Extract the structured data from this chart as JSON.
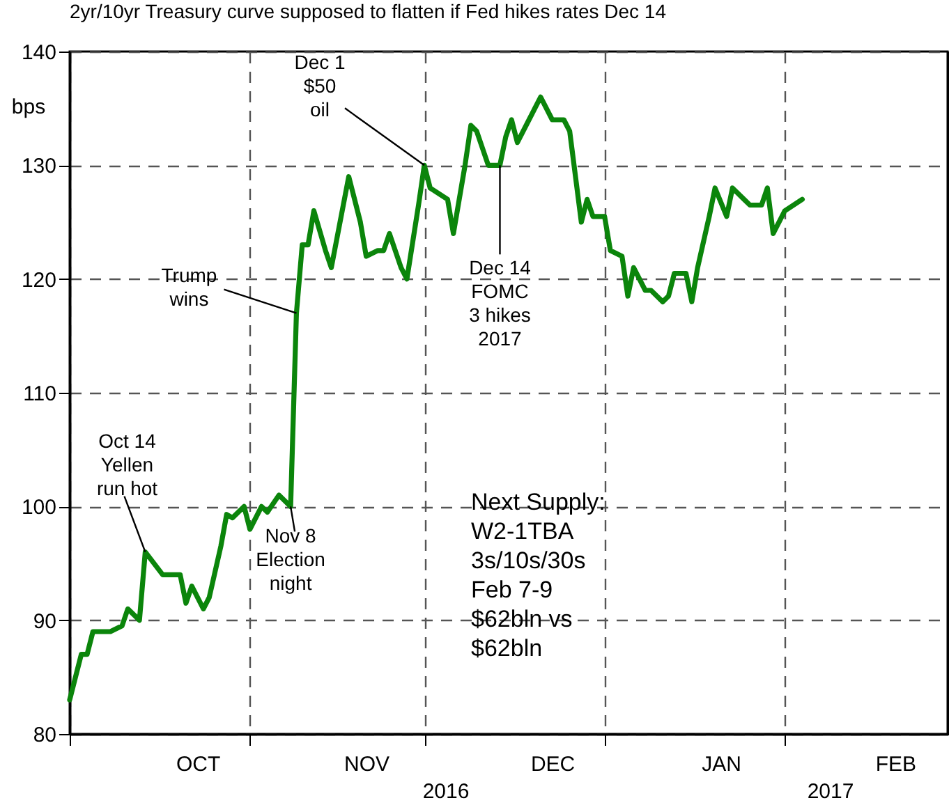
{
  "chart_data": {
    "type": "line",
    "title": "2yr/10yr Treasury curve supposed to flatten if Fed hikes rates Dec 14",
    "ylabel": "bps",
    "x": [
      "2016-10-01",
      "2016-10-03",
      "2016-10-04",
      "2016-10-05",
      "2016-10-08",
      "2016-10-10",
      "2016-10-11",
      "2016-10-13",
      "2016-10-14",
      "2016-10-17",
      "2016-10-20",
      "2016-10-21",
      "2016-10-22",
      "2016-10-24",
      "2016-10-25",
      "2016-10-27",
      "2016-10-28",
      "2016-10-29",
      "2016-10-31",
      "2016-11-01",
      "2016-11-03",
      "2016-11-04",
      "2016-11-06",
      "2016-11-08",
      "2016-11-09",
      "2016-11-10",
      "2016-11-11",
      "2016-11-12",
      "2016-11-14",
      "2016-11-15",
      "2016-11-18",
      "2016-11-20",
      "2016-11-21",
      "2016-11-23",
      "2016-11-24",
      "2016-11-25",
      "2016-11-27",
      "2016-11-28",
      "2016-11-30",
      "2016-12-01",
      "2016-12-02",
      "2016-12-05",
      "2016-12-06",
      "2016-12-08",
      "2016-12-09",
      "2016-12-10",
      "2016-12-12",
      "2016-12-14",
      "2016-12-15",
      "2016-12-16",
      "2016-12-17",
      "2016-12-19",
      "2016-12-21",
      "2016-12-23",
      "2016-12-25",
      "2016-12-26",
      "2016-12-28",
      "2016-12-29",
      "2016-12-30",
      "2017-01-01",
      "2017-01-02",
      "2017-01-04",
      "2017-01-05",
      "2017-01-06",
      "2017-01-08",
      "2017-01-09",
      "2017-01-11",
      "2017-01-12",
      "2017-01-13",
      "2017-01-15",
      "2017-01-16",
      "2017-01-17",
      "2017-01-19",
      "2017-01-20",
      "2017-01-22",
      "2017-01-23",
      "2017-01-25",
      "2017-01-26",
      "2017-01-28",
      "2017-01-29",
      "2017-01-30",
      "2017-02-01",
      "2017-02-04"
    ],
    "series": [
      {
        "color": "#0b850b",
        "values": [
          83,
          87,
          87,
          89,
          89,
          89.5,
          91,
          90,
          96,
          94,
          94,
          91.5,
          93,
          91,
          92,
          96.5,
          99.3,
          99,
          100,
          98,
          100,
          99.5,
          101,
          100,
          117,
          123,
          123,
          126,
          122.5,
          121,
          129,
          125,
          122,
          122.5,
          122.5,
          124,
          121,
          120,
          126.5,
          130,
          128,
          127,
          124,
          130,
          133.5,
          133,
          130,
          130,
          132.5,
          134,
          132,
          134,
          136,
          134,
          134,
          133,
          125,
          127,
          125.5,
          125.5,
          122.5,
          122,
          118.5,
          121,
          119,
          119,
          118,
          118.5,
          120.5,
          120.5,
          118,
          121,
          125.5,
          128,
          125.5,
          128,
          127,
          126.5,
          126.5,
          128,
          124,
          126,
          127
        ]
      }
    ],
    "xlim": [
      "2016-10-01",
      "2017-03-01"
    ],
    "xticks": [
      {
        "value": "2016-10-01",
        "label": null
      },
      {
        "value": "2016-11-01",
        "label": null
      },
      {
        "value": "2016-12-01",
        "label": null
      },
      {
        "value": "2017-01-01",
        "label": null
      },
      {
        "value": "2017-02-01",
        "label": null
      },
      {
        "value": "2016-10-23",
        "label": "OCT"
      },
      {
        "value": "2016-11-21",
        "label": "NOV"
      },
      {
        "value": "2016-12-23",
        "label": "DEC"
      },
      {
        "value": "2017-01-21",
        "label": "JAN"
      },
      {
        "value": "2017-02-20",
        "label": "FEB"
      }
    ],
    "ylim": [
      80,
      140
    ],
    "yticks": [
      80,
      90,
      100,
      110,
      120,
      130,
      140
    ],
    "grid": true,
    "annotations": [
      {
        "text": "Oct 14\nYellen\nrun hot",
        "x": "2016-10-14",
        "y": 96
      },
      {
        "text": "Nov 8\nElection\nnight",
        "x": "2016-11-08",
        "y": 100
      },
      {
        "text": "Trump\nwins",
        "x": "2016-11-09",
        "y": 117
      },
      {
        "text": "Dec 1\n$50\noil",
        "x": "2016-12-01",
        "y": 130
      },
      {
        "text": "Dec 14\nFOMC\n3 hikes\n2017",
        "x": "2016-12-14",
        "y": 130
      },
      "Next Supply:\nW2-1TBA\n3s/10s/30s\nFeb 7-9\n$62bln vs\n$62bln",
      "2016",
      "2017"
    ]
  }
}
